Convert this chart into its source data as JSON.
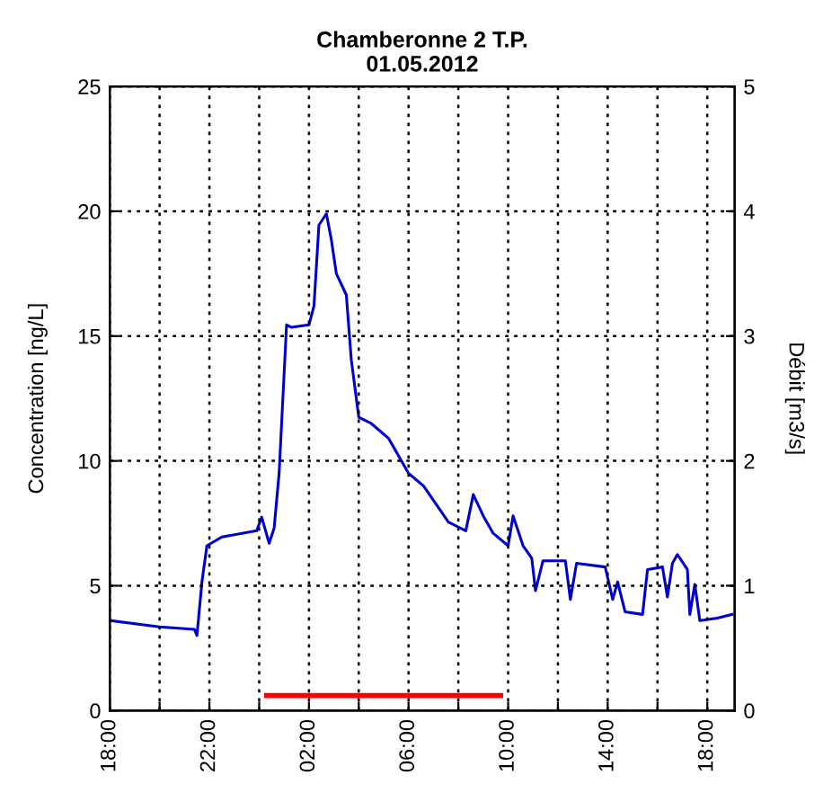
{
  "chart_data": {
    "type": "line",
    "title": "Chamberonne 2 T.P.\n01.05.2012",
    "ylabel": "Concentration [ng/L]",
    "y2label": "Débit [m3/s]",
    "xlim": [
      "2012-04-30T18:00",
      "2012-05-01T19:06"
    ],
    "ylim": [
      0,
      25
    ],
    "y2lim": [
      0,
      5
    ],
    "xticks": [
      {
        "value": "2012-04-30T18:00",
        "label": "18:00"
      },
      {
        "value": "2012-04-30T20:00",
        "label": null
      },
      {
        "value": "2012-04-30T22:00",
        "label": "22:00"
      },
      {
        "value": "2012-05-01T00:00",
        "label": null
      },
      {
        "value": "2012-05-01T02:00",
        "label": "02:00"
      },
      {
        "value": "2012-05-01T04:00",
        "label": null
      },
      {
        "value": "2012-05-01T06:00",
        "label": "06:00"
      },
      {
        "value": "2012-05-01T08:00",
        "label": null
      },
      {
        "value": "2012-05-01T10:00",
        "label": "10:00"
      },
      {
        "value": "2012-05-01T12:00",
        "label": null
      },
      {
        "value": "2012-05-01T14:00",
        "label": "14:00"
      },
      {
        "value": "2012-05-01T16:00",
        "label": null
      },
      {
        "value": "2012-05-01T18:00",
        "label": "18:00"
      }
    ],
    "yticks": [
      0,
      5,
      10,
      15,
      20,
      25
    ],
    "y2ticks": [
      0,
      1,
      2,
      3,
      4,
      5
    ],
    "grid": true,
    "line_style": "solid",
    "marker": "none",
    "series": [
      {
        "color": "#ff0000",
        "x": [
          "2012-05-01T00:18",
          "2012-05-01T09:42"
        ],
        "values": [
          0.6,
          0.6
        ]
      },
      {
        "color": "#0000cc",
        "axis": "y2",
        "x": [
          "2012-04-30T18:03",
          "2012-04-30T20:00",
          "2012-04-30T21:24",
          "2012-04-30T21:30",
          "2012-04-30T21:42",
          "2012-04-30T21:54",
          "2012-04-30T22:30",
          "2012-04-30T23:54",
          "2012-05-01T00:06",
          "2012-05-01T00:24",
          "2012-05-01T00:36",
          "2012-05-01T00:48",
          "2012-05-01T01:06",
          "2012-05-01T01:18",
          "2012-05-01T02:00",
          "2012-05-01T02:12",
          "2012-05-01T02:24",
          "2012-05-01T02:42",
          "2012-05-01T02:54",
          "2012-05-01T03:06",
          "2012-05-01T03:30",
          "2012-05-01T03:42",
          "2012-05-01T04:00",
          "2012-05-01T04:30",
          "2012-05-01T05:12",
          "2012-05-01T06:00",
          "2012-05-01T06:36",
          "2012-05-01T07:36",
          "2012-05-01T08:18",
          "2012-05-01T08:36",
          "2012-05-01T09:00",
          "2012-05-01T09:24",
          "2012-05-01T10:00",
          "2012-05-01T10:12",
          "2012-05-01T10:36",
          "2012-05-01T10:57",
          "2012-05-01T11:06",
          "2012-05-01T11:24",
          "2012-05-01T12:18",
          "2012-05-01T12:30",
          "2012-05-01T12:45",
          "2012-05-01T13:54",
          "2012-05-01T14:12",
          "2012-05-01T14:24",
          "2012-05-01T14:42",
          "2012-05-01T15:24",
          "2012-05-01T15:36",
          "2012-05-01T16:12",
          "2012-05-01T16:24",
          "2012-05-01T16:36",
          "2012-05-01T16:48",
          "2012-05-01T17:12",
          "2012-05-01T17:18",
          "2012-05-01T17:30",
          "2012-05-01T17:42",
          "2012-05-01T18:24",
          "2012-05-01T19:00"
        ],
        "values": [
          0.72,
          0.67,
          0.65,
          0.6,
          1.03,
          1.32,
          1.39,
          1.44,
          1.55,
          1.34,
          1.46,
          1.9,
          3.09,
          3.07,
          3.09,
          3.24,
          3.89,
          3.98,
          3.77,
          3.5,
          3.33,
          2.81,
          2.35,
          2.3,
          2.18,
          1.9,
          1.8,
          1.51,
          1.44,
          1.73,
          1.56,
          1.42,
          1.32,
          1.56,
          1.32,
          1.22,
          0.96,
          1.2,
          1.2,
          0.89,
          1.18,
          1.15,
          0.89,
          1.03,
          0.79,
          0.77,
          1.13,
          1.15,
          0.91,
          1.18,
          1.25,
          1.13,
          0.77,
          1.01,
          0.72,
          0.74,
          0.77
        ]
      }
    ]
  }
}
